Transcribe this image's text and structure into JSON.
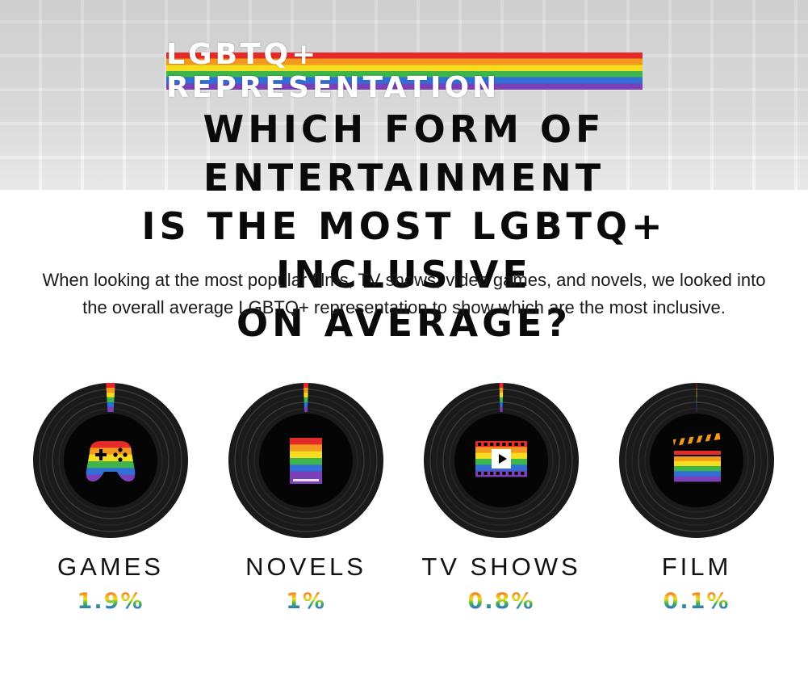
{
  "header": {
    "tag": "LGBTQ+ REPRESENTATION",
    "title_lines": [
      "WHICH FORM OF ENTERTAINMENT",
      "IS THE MOST LGBTQ+ INCLUSIVE",
      "ON AVERAGE?"
    ],
    "subtitle": "When looking at the most popular films, TV shows, video games, and novels, we looked into the overall average LGBTQ+ representation to show which are the most inclusive."
  },
  "colors": {
    "rainbow": [
      "#e52a2a",
      "#f39a1e",
      "#f5dc1f",
      "#3db54a",
      "#2f6fd6",
      "#7b3fb8"
    ],
    "ring_dark": "#1a1a1a",
    "ring_mid": "#3a3a3a",
    "inner": "#050505"
  },
  "chart_data": {
    "type": "pie",
    "unit": "%",
    "categories": [
      "GAMES",
      "NOVELS",
      "TV SHOWS",
      "FILM"
    ],
    "values": [
      1.9,
      1,
      0.8,
      0.1
    ],
    "value_labels": [
      "1.9%",
      "1%",
      "0.8%",
      "0.1%"
    ],
    "icons": [
      "gamepad-icon",
      "book-icon",
      "film-strip-icon",
      "clapperboard-icon"
    ]
  }
}
